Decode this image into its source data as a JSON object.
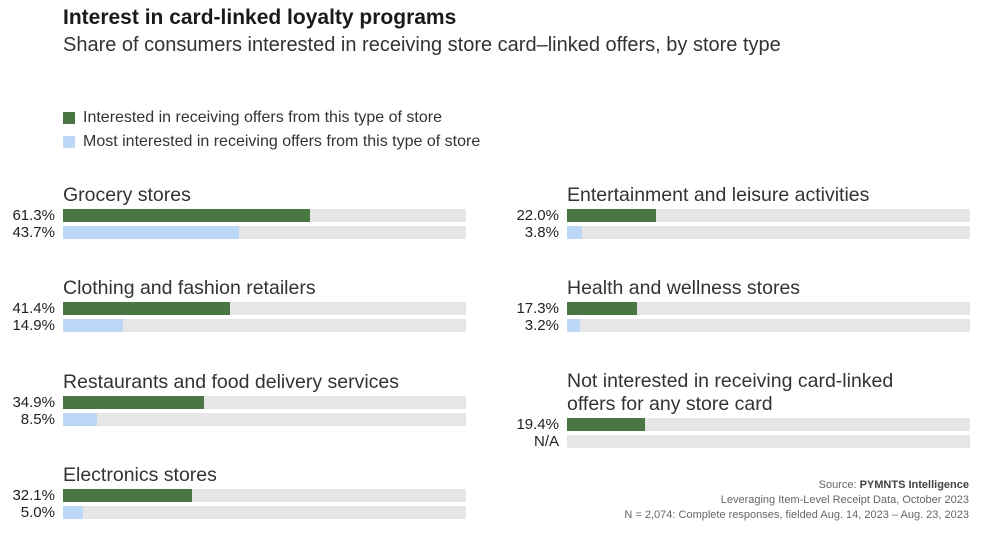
{
  "header": {
    "title": "Interest in card-linked loyalty programs",
    "subtitle": "Share of consumers interested in receiving store card–linked offers, by store type"
  },
  "colors": {
    "interested": "#4a7644",
    "most_interested": "#bcd8f6",
    "track": "#e6e6e6"
  },
  "chart_data": {
    "type": "bar",
    "title": "Interest in card-linked loyalty programs",
    "subtitle": "Share of consumers interested in receiving store card–linked offers, by store type",
    "xlim": [
      0,
      100
    ],
    "unit": "%",
    "legend": [
      "Interested in receiving offers from this type of store",
      "Most interested in receiving offers from this type of store"
    ],
    "categories": [
      "Grocery stores",
      "Clothing and fashion retailers",
      "Restaurants and food delivery services",
      "Electronics stores",
      "Entertainment and leisure activities",
      "Health and wellness stores",
      "Not interested in receiving card-linked offers for any store card"
    ],
    "category_lines": [
      [
        "Grocery stores"
      ],
      [
        "Clothing and fashion retailers"
      ],
      [
        "Restaurants and food delivery services"
      ],
      [
        "Electronics stores"
      ],
      [
        "Entertainment and leisure activities"
      ],
      [
        "Health and wellness stores"
      ],
      [
        "Not interested in receiving card-linked",
        "offers for any store card"
      ]
    ],
    "series": [
      {
        "name": "Interested in receiving offers from this type of store",
        "values": [
          61.3,
          41.4,
          34.9,
          32.1,
          22.0,
          17.3,
          19.4
        ],
        "labels": [
          "61.3%",
          "41.4%",
          "34.9%",
          "32.1%",
          "22.0%",
          "17.3%",
          "19.4%"
        ]
      },
      {
        "name": "Most interested in receiving offers from this type of store",
        "values": [
          43.7,
          14.9,
          8.5,
          5.0,
          3.8,
          3.2,
          null
        ],
        "labels": [
          "43.7%",
          "14.9%",
          "8.5%",
          "5.0%",
          "3.8%",
          "3.2%",
          "N/A"
        ]
      }
    ]
  },
  "source": {
    "label": "Source: ",
    "org": "PYMNTS Intelligence",
    "line2": "Leveraging Item-Level Receipt Data, October 2023",
    "line3": "N = 2,074: Complete responses, fielded Aug. 14, 2023 – Aug. 23, 2023"
  }
}
